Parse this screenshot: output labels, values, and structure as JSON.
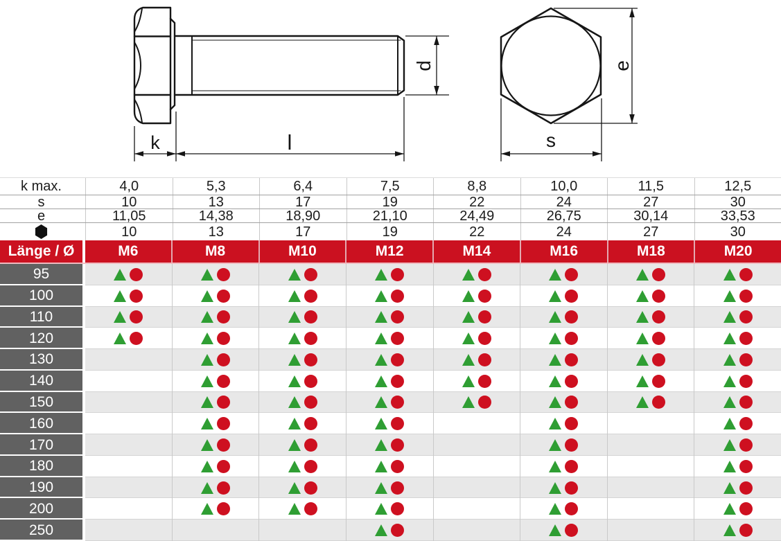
{
  "drawing": {
    "labels": {
      "head_height": "k",
      "length": "l",
      "diameter": "d",
      "corner_width": "e",
      "wrench_size": "s"
    }
  },
  "table": {
    "spec_rows": [
      {
        "label": "k max.",
        "values": [
          "4,0",
          "5,3",
          "6,4",
          "7,5",
          "8,8",
          "10,0",
          "11,5",
          "12,5"
        ]
      },
      {
        "label": "s",
        "values": [
          "10",
          "13",
          "17",
          "19",
          "22",
          "24",
          "27",
          "30"
        ]
      },
      {
        "label": "e",
        "values": [
          "11,05",
          "14,38",
          "18,90",
          "21,10",
          "24,49",
          "26,75",
          "30,14",
          "33,53"
        ]
      },
      {
        "label": "hexagon",
        "icon": "hexagon",
        "values": [
          "10",
          "13",
          "17",
          "19",
          "22",
          "24",
          "27",
          "30"
        ]
      }
    ],
    "header": {
      "label": "Länge / Ø",
      "columns": [
        "M6",
        "M8",
        "M10",
        "M12",
        "M14",
        "M16",
        "M18",
        "M20"
      ]
    },
    "rows": [
      {
        "length": "95",
        "cells": [
          "tc",
          "tc",
          "tc",
          "tc",
          "tc",
          "tc",
          "tc",
          "tc"
        ]
      },
      {
        "length": "100",
        "cells": [
          "tc",
          "tc",
          "tc",
          "tc",
          "tc",
          "tc",
          "tc",
          "tc"
        ]
      },
      {
        "length": "110",
        "cells": [
          "tc",
          "tc",
          "tc",
          "tc",
          "tc",
          "tc",
          "tc",
          "tc"
        ]
      },
      {
        "length": "120",
        "cells": [
          "tc",
          "tc",
          "tc",
          "tc",
          "tc",
          "tc",
          "tc",
          "tc"
        ]
      },
      {
        "length": "130",
        "cells": [
          "",
          "tc",
          "tc",
          "tc",
          "tc",
          "tc",
          "tc",
          "tc"
        ]
      },
      {
        "length": "140",
        "cells": [
          "",
          "tc",
          "tc",
          "tc",
          "tc",
          "tc",
          "tc",
          "tc"
        ]
      },
      {
        "length": "150",
        "cells": [
          "",
          "tc",
          "tc",
          "tc",
          "tc",
          "tc",
          "tc",
          "tc"
        ]
      },
      {
        "length": "160",
        "cells": [
          "",
          "tc",
          "tc",
          "tc",
          "",
          "tc",
          "",
          "tc"
        ]
      },
      {
        "length": "170",
        "cells": [
          "",
          "tc",
          "tc",
          "tc",
          "",
          "tc",
          "",
          "tc"
        ]
      },
      {
        "length": "180",
        "cells": [
          "",
          "tc",
          "tc",
          "tc",
          "",
          "tc",
          "",
          "tc"
        ]
      },
      {
        "length": "190",
        "cells": [
          "",
          "tc",
          "tc",
          "tc",
          "",
          "tc",
          "",
          "tc"
        ]
      },
      {
        "length": "200",
        "cells": [
          "",
          "tc",
          "tc",
          "tc",
          "",
          "tc",
          "",
          "tc"
        ]
      },
      {
        "length": "250",
        "cells": [
          "",
          "",
          "",
          "tc",
          "",
          "tc",
          "",
          "tc"
        ]
      }
    ]
  },
  "colors": {
    "header_red": "#cb1120",
    "label_gray": "#616161",
    "row_alt_gray": "#e8e8e8",
    "triangle_green": "#2f9e33",
    "circle_red": "#ce1020"
  }
}
